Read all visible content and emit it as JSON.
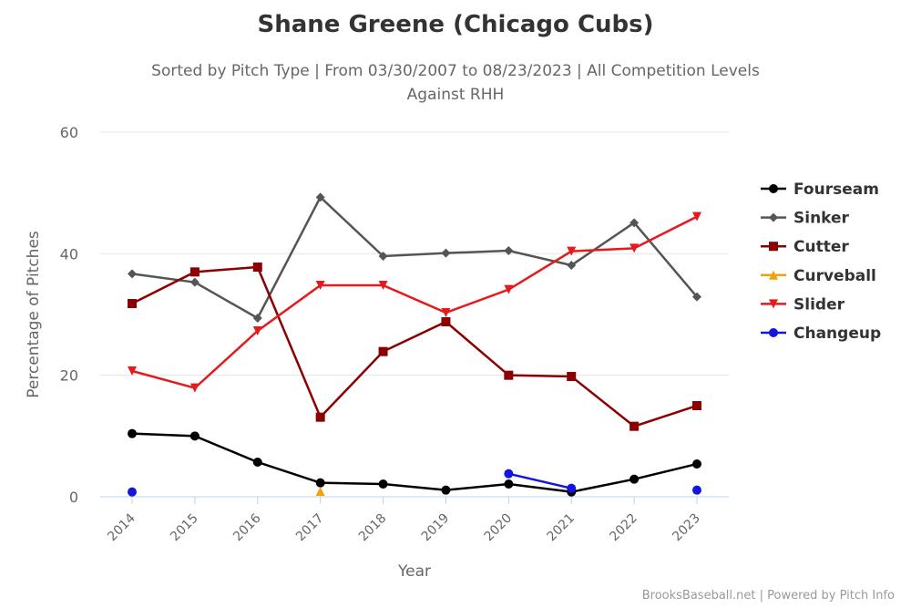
{
  "chart_data": {
    "type": "line",
    "title": "Shane Greene (Chicago Cubs)",
    "subtitle_line1": "Sorted by Pitch Type | From 03/30/2007 to 08/23/2023 | All Competition Levels",
    "subtitle_line2": "Against RHH",
    "xlabel": "Year",
    "ylabel": "Percentage of Pitches",
    "categories": [
      "2014",
      "2015",
      "2016",
      "2017",
      "2018",
      "2019",
      "2020",
      "2021",
      "2022",
      "2023"
    ],
    "ylim": [
      0,
      60
    ],
    "yticks": [
      "0",
      "20",
      "40",
      "60"
    ],
    "grid": true,
    "legend_position": "right",
    "credit": "BrooksBaseball.net | Powered by Pitch Info",
    "series": [
      {
        "name": "Fourseam",
        "color": "#000000",
        "marker": "circle",
        "values": [
          10.4,
          10.0,
          5.7,
          2.3,
          2.1,
          1.1,
          2.1,
          0.8,
          2.9,
          5.4
        ]
      },
      {
        "name": "Sinker",
        "color": "#555555",
        "marker": "diamond",
        "values": [
          36.7,
          35.3,
          29.4,
          49.3,
          39.6,
          40.1,
          40.5,
          38.1,
          45.1,
          32.9
        ]
      },
      {
        "name": "Cutter",
        "color": "#8b0000",
        "marker": "square",
        "values": [
          31.8,
          37.0,
          37.8,
          13.1,
          23.9,
          28.8,
          20.0,
          19.8,
          11.6,
          15.0
        ]
      },
      {
        "name": "Curveball",
        "color": "#f0a30a",
        "marker": "triangle",
        "values": [
          null,
          null,
          null,
          0.9,
          null,
          null,
          null,
          null,
          null,
          null
        ]
      },
      {
        "name": "Slider",
        "color": "#e41a1c",
        "marker": "triangle-down",
        "values": [
          20.7,
          17.9,
          27.3,
          34.8,
          34.8,
          30.3,
          34.1,
          40.4,
          40.9,
          46.1
        ]
      },
      {
        "name": "Changeup",
        "color": "#1515e0",
        "marker": "circle",
        "values": [
          0.8,
          null,
          null,
          null,
          null,
          null,
          3.8,
          1.4,
          null,
          1.1
        ]
      }
    ]
  }
}
